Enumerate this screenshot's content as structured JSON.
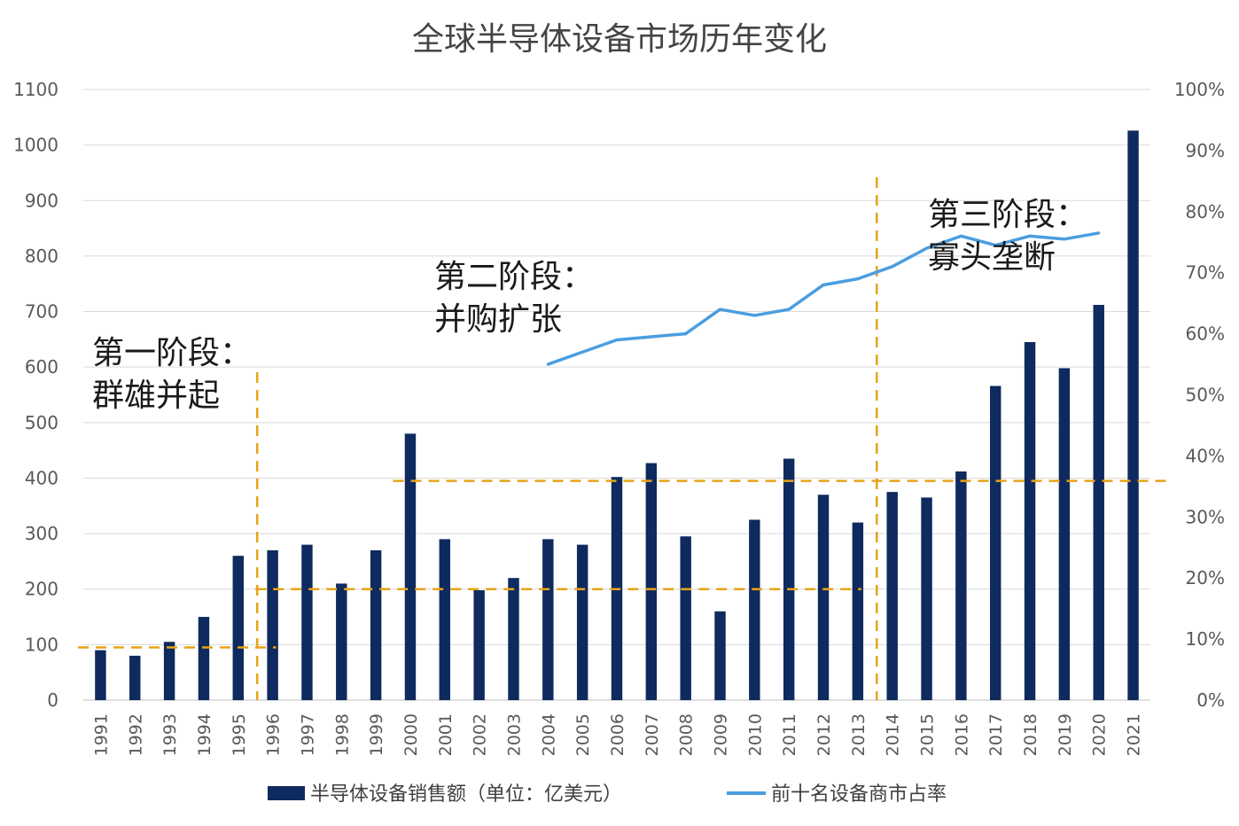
{
  "chart_data": {
    "type": "bar",
    "title": "全球半导体设备市场历年变化",
    "categories": [
      "1991",
      "1992",
      "1993",
      "1994",
      "1995",
      "1996",
      "1997",
      "1998",
      "1999",
      "2000",
      "2001",
      "2002",
      "2003",
      "2004",
      "2005",
      "2006",
      "2007",
      "2008",
      "2009",
      "2010",
      "2011",
      "2012",
      "2013",
      "2014",
      "2015",
      "2016",
      "2017",
      "2018",
      "2019",
      "2020",
      "2021"
    ],
    "series": [
      {
        "name": "半导体设备销售额（单位：亿美元）",
        "type": "bar",
        "axis": "left",
        "color": "#0e2a5e",
        "values": [
          90,
          80,
          105,
          150,
          260,
          270,
          280,
          210,
          270,
          480,
          290,
          198,
          220,
          290,
          280,
          402,
          427,
          295,
          160,
          325,
          435,
          370,
          320,
          375,
          365,
          412,
          566,
          645,
          598,
          712,
          1026
        ]
      },
      {
        "name": "前十名设备商市占率",
        "type": "line",
        "axis": "right",
        "color": "#4a9ee0",
        "x": [
          "2004",
          "2005",
          "2006",
          "2007",
          "2008",
          "2009",
          "2010",
          "2011",
          "2012",
          "2013",
          "2014",
          "2015",
          "2016",
          "2017",
          "2018",
          "2019",
          "2020"
        ],
        "values": [
          55,
          57,
          59,
          59.5,
          60,
          64,
          63,
          64,
          68,
          69,
          71,
          74,
          76,
          74.5,
          76,
          75.5,
          76.5
        ]
      }
    ],
    "y_left": {
      "min": 0,
      "max": 1100,
      "ticks": [
        "0",
        "100",
        "200",
        "300",
        "400",
        "500",
        "600",
        "700",
        "800",
        "900",
        "1000",
        "1100"
      ]
    },
    "y_right": {
      "min": 0,
      "max": 100,
      "ticks": [
        "0%",
        "10%",
        "20%",
        "30%",
        "40%",
        "50%",
        "60%",
        "70%",
        "80%",
        "90%",
        "100%"
      ]
    },
    "grid": true,
    "legend_position": "bottom",
    "reference_lines": [
      {
        "from": "1991",
        "to": "1996",
        "value": 95,
        "color": "#e8a317"
      },
      {
        "from": "1996",
        "to": "2013",
        "value": 200,
        "color": "#e8a317"
      },
      {
        "from": "2000",
        "to": "2021",
        "value": 395,
        "color": "#e8a317"
      }
    ],
    "stage_dividers": [
      {
        "at": "1996",
        "color": "#e8a317"
      },
      {
        "at": "2014",
        "color": "#e8a317"
      }
    ],
    "annotations": [
      {
        "lines": [
          "第一阶段：",
          "群雄并起"
        ]
      },
      {
        "lines": [
          "第二阶段：",
          "并购扩张"
        ]
      },
      {
        "lines": [
          "第三阶段：",
          "寡头垄断"
        ]
      }
    ]
  }
}
